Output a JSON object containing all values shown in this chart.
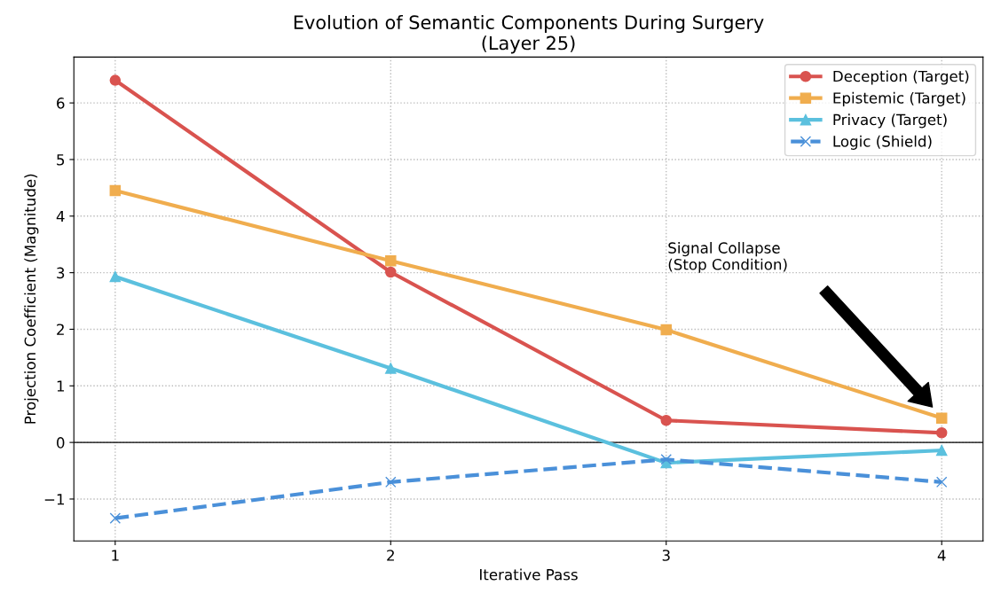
{
  "chart_data": {
    "type": "line",
    "title": "Evolution of Semantic Components During Surgery\n(Layer 25)",
    "xlabel": "Iterative Pass",
    "ylabel": "Projection Coefficient (Magnitude)",
    "x": [
      1,
      2,
      3,
      4
    ],
    "series": [
      {
        "name": "Deception (Target)",
        "color": "#d9534f",
        "values": [
          6.4,
          3.01,
          0.39,
          0.17
        ],
        "marker": "circle",
        "line_style": "solid"
      },
      {
        "name": "Epistemic (Target)",
        "color": "#f0ad4e",
        "values": [
          4.45,
          3.21,
          1.99,
          0.43
        ],
        "marker": "square",
        "line_style": "solid"
      },
      {
        "name": "Privacy (Target)",
        "color": "#5bc0de",
        "values": [
          2.93,
          1.31,
          -0.36,
          -0.14
        ],
        "marker": "triangle",
        "line_style": "solid"
      },
      {
        "name": "Logic (Shield)",
        "color": "#4a90d9",
        "values": [
          -1.34,
          -0.7,
          -0.3,
          -0.7
        ],
        "marker": "cross",
        "line_style": "dashed"
      }
    ],
    "xlim": [
      0.85,
      4.15
    ],
    "ylim": [
      -1.74,
      6.81
    ],
    "xticks": [
      1,
      2,
      3,
      4
    ],
    "yticks": [
      {
        "value": -1,
        "label": "−1"
      },
      0,
      1,
      2,
      3,
      4,
      5,
      6
    ],
    "ref_lines": [
      {
        "axis": "y",
        "value": 0,
        "color": "#000000",
        "line_style": "solid"
      }
    ],
    "annotations": [
      "Signal Collapse\n(Stop Condition)"
    ],
    "grid": true,
    "legend": "top right"
  }
}
